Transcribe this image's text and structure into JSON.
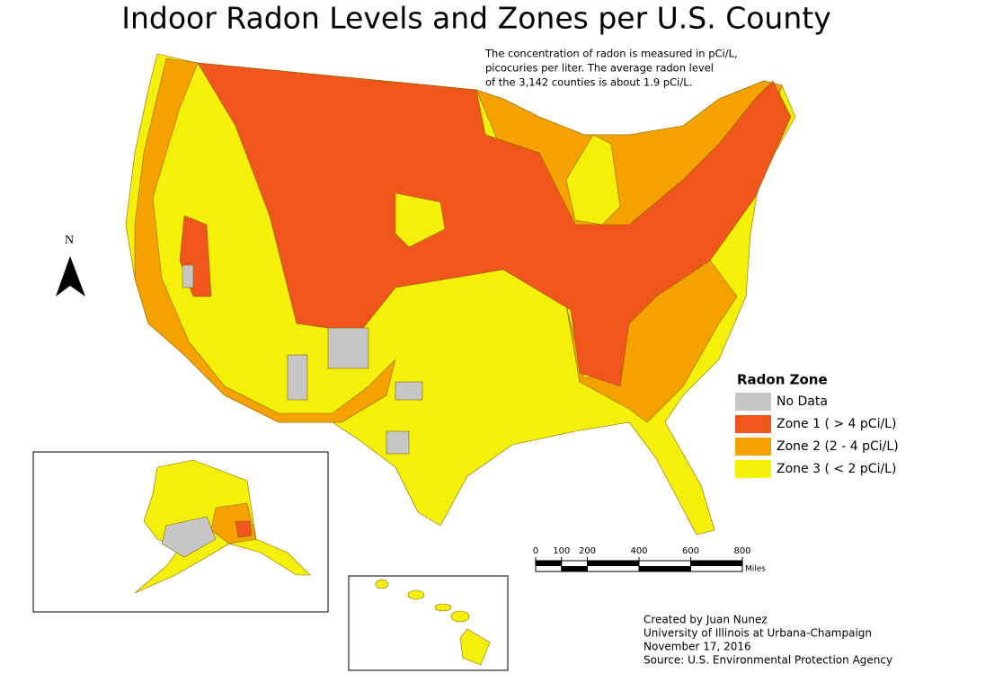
{
  "title": "Indoor Radon Levels and Zones per U.S. County",
  "note": [
    "The concentration of radon is measured in pCi/L,",
    "picocuries per liter. The average radon level",
    "of the 3,142 counties is about 1.9 pCi/L."
  ],
  "north": "N",
  "legend": {
    "title": "Radon Zone",
    "items": [
      {
        "label": "No Data",
        "color": "#c6c6c6"
      },
      {
        "label": "Zone 1 ( > 4 pCi/L)",
        "color": "#f0561c"
      },
      {
        "label": "Zone 2 (2 - 4 pCi/L)",
        "color": "#f5a100"
      },
      {
        "label": "Zone 3 ( < 2 pCi/L)",
        "color": "#f5f00a"
      }
    ]
  },
  "scale_bar": {
    "ticks": [
      0,
      100,
      200,
      400,
      600,
      800
    ],
    "unit": "Miles"
  },
  "credits": [
    "Created by Juan Nunez",
    "University of Illinois at Urbana-Champaign",
    "November 17, 2016",
    "Source: U.S. Environmental Protection Agency"
  ]
}
